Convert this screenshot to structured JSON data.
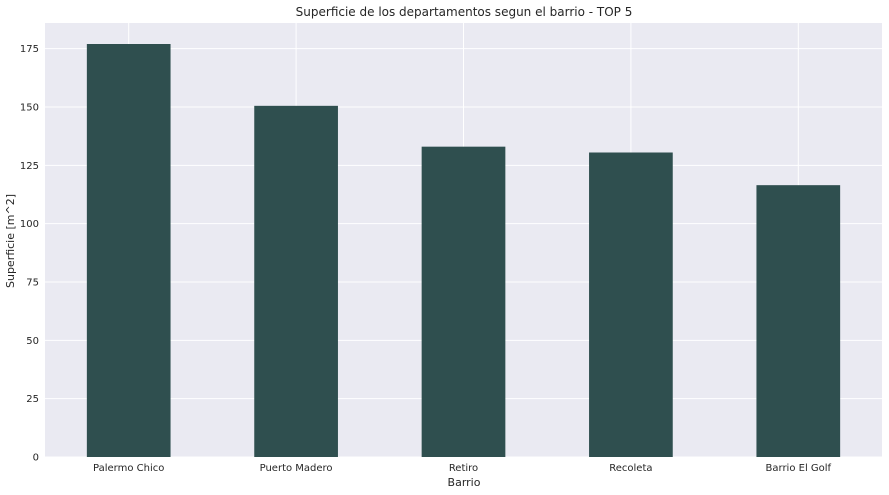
{
  "chart_data": {
    "type": "bar",
    "title": "Superficie de los departamentos segun el barrio - TOP 5",
    "xlabel": "Barrio",
    "ylabel": "Superficie [m^2]",
    "categories": [
      "Palermo Chico",
      "Puerto Madero",
      "Retiro",
      "Recoleta",
      "Barrio El Golf"
    ],
    "values": [
      177,
      150.5,
      133,
      130.5,
      116.5
    ],
    "ylim": [
      0,
      186
    ],
    "yticks": [
      0,
      25,
      50,
      75,
      100,
      125,
      150,
      175
    ],
    "grid": true,
    "colors": {
      "bar": "#2f4f4f",
      "background": "#eaeaf2",
      "grid": "#ffffff"
    }
  }
}
